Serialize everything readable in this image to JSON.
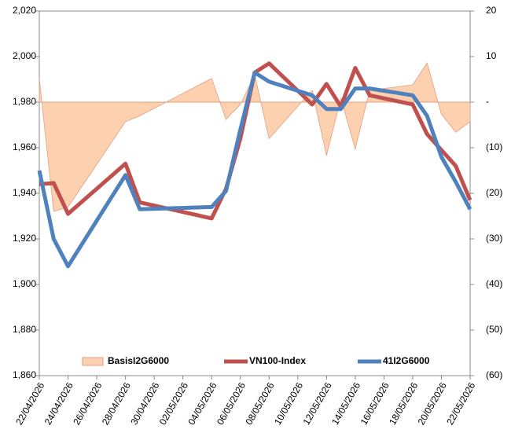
{
  "chart_data": {
    "type": "combo",
    "x": [
      "22/04/2026",
      "23/04/2026",
      "24/04/2026",
      "28/04/2026",
      "29/04/2026",
      "04/05/2026",
      "05/05/2026",
      "06/05/2026",
      "07/05/2026",
      "08/05/2026",
      "11/05/2026",
      "12/05/2026",
      "13/05/2026",
      "14/05/2026",
      "15/05/2026",
      "18/05/2026",
      "19/05/2026",
      "20/05/2026",
      "21/05/2026",
      "22/05/2026"
    ],
    "xlim": [
      "22/04/2026",
      "22/05/2026"
    ],
    "xticks": [
      "22/04/2026",
      "24/04/2026",
      "26/04/2026",
      "28/04/2026",
      "30/04/2026",
      "02/05/2026",
      "04/05/2026",
      "06/05/2026",
      "08/05/2026",
      "10/05/2026",
      "12/05/2026",
      "14/05/2026",
      "16/05/2026",
      "18/05/2026",
      "20/05/2026",
      "22/05/2026"
    ],
    "ylim": [
      1860,
      2020
    ],
    "yticks": [
      {
        "value": 1860,
        "label": "1,860"
      },
      {
        "value": 1880,
        "label": "1,880"
      },
      {
        "value": 1900,
        "label": "1,900"
      },
      {
        "value": 1920,
        "label": "1,920"
      },
      {
        "value": 1940,
        "label": "1,940"
      },
      {
        "value": 1960,
        "label": "1,960"
      },
      {
        "value": 1980,
        "label": "1,980"
      },
      {
        "value": 2000,
        "label": "2,000"
      },
      {
        "value": 2020,
        "label": "2,020"
      }
    ],
    "y2lim": [
      -60,
      20
    ],
    "y2ticks": [
      {
        "value": -60,
        "label": "(60)"
      },
      {
        "value": -50,
        "label": "(50)"
      },
      {
        "value": -40,
        "label": "(40)"
      },
      {
        "value": -30,
        "label": "(30)"
      },
      {
        "value": -20,
        "label": "(20)"
      },
      {
        "value": -10,
        "label": "(10)"
      },
      {
        "value": 0,
        "label": "-"
      },
      10,
      20
    ],
    "series": [
      {
        "name": "BasisI2G6000",
        "kind": "area",
        "axis": "y2",
        "color": "#fdd0b0",
        "values": [
          5.2,
          -24,
          -23,
          -4.3,
          -3,
          5.2,
          -3.8,
          -0.5,
          6,
          -8,
          2.6,
          -11.7,
          0.9,
          -10.3,
          2.6,
          3.8,
          8.6,
          -2.6,
          -6.6,
          -4.3
        ]
      },
      {
        "name": "VN100-Index",
        "kind": "line",
        "color": "#c0504d",
        "values": [
          1944,
          1944.5,
          1931,
          1953,
          1936,
          1929,
          1942,
          1964,
          1993,
          1997,
          1979,
          1988,
          1978,
          1995,
          1983,
          1979,
          1966,
          1959,
          1952,
          1937
        ]
      },
      {
        "name": "41I2G6000",
        "kind": "line",
        "color": "#4f81bd",
        "values": [
          1950,
          1920,
          1908,
          1948,
          1933,
          1934,
          1941,
          1968,
          1993,
          1989,
          1983,
          1977,
          1977,
          1986,
          1986,
          1983,
          1974,
          1956,
          1945,
          1933
        ]
      }
    ]
  }
}
